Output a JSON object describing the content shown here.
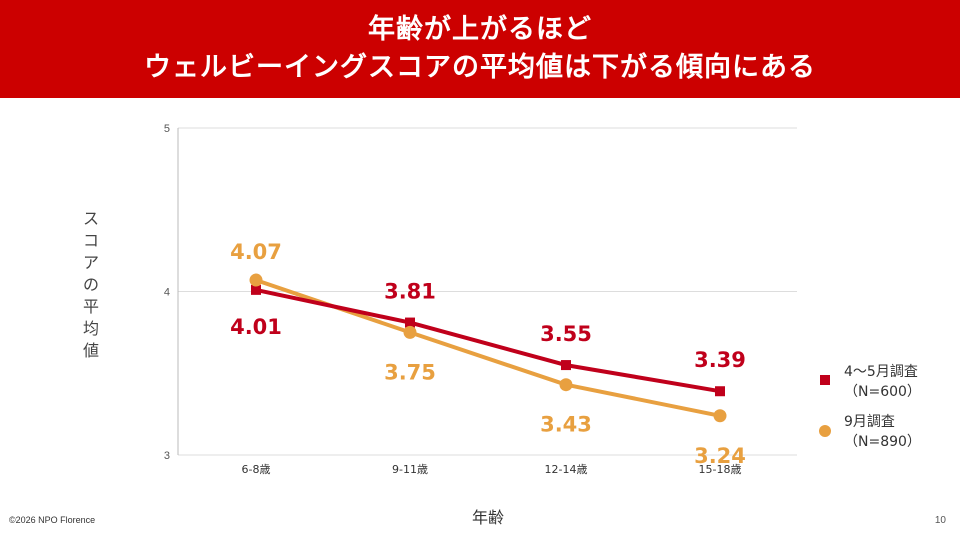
{
  "slide": {
    "title_line1": "年齢が上がるほど",
    "title_line2": "ウェルビーイングスコアの平均値は下がる傾向にある",
    "copyright": "©2026 NPO Florence",
    "page_number": "10",
    "colors": {
      "title_bg": "#cc0000",
      "series1": "#c0001b",
      "series2": "#e8a040",
      "grid": "#dddddd"
    }
  },
  "chart_data": {
    "type": "line",
    "title": "",
    "xlabel": "年齢",
    "ylabel": "スコアの平均値",
    "ylabel_chars": [
      "ス",
      "コ",
      "ア",
      "の",
      "平",
      "均",
      "値"
    ],
    "categories": [
      "6-8歳",
      "9-11歳",
      "12-14歳",
      "15-18歳"
    ],
    "yticks": [
      "3",
      "4",
      "5"
    ],
    "ylim": [
      3,
      5
    ],
    "grid": true,
    "legend_position": "right",
    "series": [
      {
        "name": "4〜5月調査",
        "name_line1": "4〜5月調査",
        "name_line2": "（N=600）",
        "marker": "square",
        "color": "#c0001b",
        "values": [
          4.01,
          3.81,
          3.55,
          3.39
        ],
        "labels": [
          "4.01",
          "3.81",
          "3.55",
          "3.39"
        ]
      },
      {
        "name": "9月調査",
        "name_line1": "9月調査",
        "name_line2": "（N=890）",
        "marker": "circle",
        "color": "#e8a040",
        "values": [
          4.07,
          3.75,
          3.43,
          3.24
        ],
        "labels": [
          "4.07",
          "3.75",
          "3.43",
          "3.24"
        ]
      }
    ]
  }
}
